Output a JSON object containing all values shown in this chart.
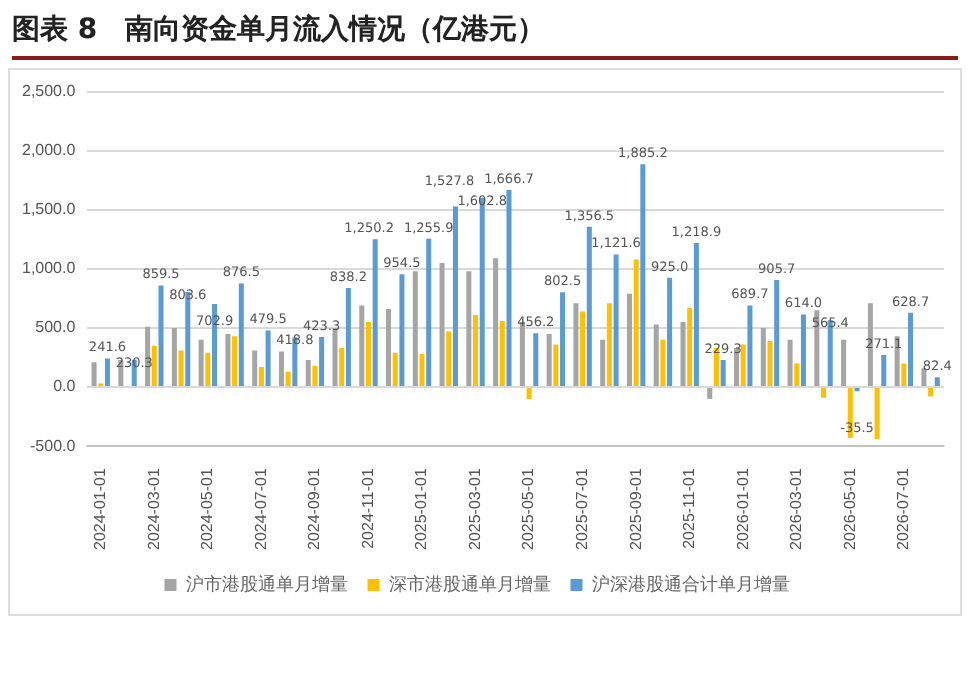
{
  "chart_data": {
    "type": "bar",
    "title": "图表 8　南向资金单月流入情况（亿港元）",
    "categories": [
      "2024-01-01",
      null,
      "2024-03-01",
      null,
      "2024-05-01",
      null,
      "2024-07-01",
      null,
      "2024-09-01",
      null,
      "2024-11-01",
      null,
      "2025-01-01",
      null,
      "2025-03-01",
      null,
      "2025-05-01",
      null,
      "2025-07-01",
      null,
      "2025-09-01",
      null,
      "2025-11-01",
      null,
      "2026-01-01",
      null,
      "2026-03-01",
      null,
      "2026-05-01",
      null,
      "2026-07-01",
      null
    ],
    "series": [
      {
        "name": "沪市港股通单月增量",
        "color": "#a5a5a5",
        "values": [
          210,
          230,
          510,
          500,
          400,
          450,
          310,
          300,
          230,
          500,
          690,
          660,
          980,
          1050,
          980,
          1090,
          550,
          450,
          710,
          400,
          790,
          530,
          550,
          -100,
          330,
          500,
          400,
          650,
          400,
          710,
          430,
          160
        ]
      },
      {
        "name": "深市港股通单月增量",
        "color": "#ffc000",
        "values": [
          30,
          0,
          350,
          310,
          290,
          430,
          170,
          130,
          180,
          330,
          550,
          290,
          280,
          470,
          610,
          560,
          -100,
          360,
          640,
          710,
          1080,
          400,
          670,
          330,
          360,
          390,
          200,
          -90,
          -430,
          -440,
          200,
          -80
        ]
      },
      {
        "name": "沪深港股通合计单月增量",
        "color": "#5b9bd5",
        "values": [
          241.6,
          230.3,
          859.5,
          803.6,
          702.9,
          876.5,
          479.5,
          418.8,
          423.3,
          838.2,
          1250.2,
          954.5,
          1255.9,
          1527.8,
          1602.8,
          1666.7,
          456.2,
          802.5,
          1356.5,
          1121.6,
          1885.2,
          925.0,
          1218.9,
          229.3,
          689.7,
          905.7,
          614.0,
          565.4,
          -35.5,
          271.1,
          628.7,
          82.4
        ],
        "value_labels": [
          "241.6",
          "230.3",
          "859.5",
          "803.6",
          "702.9",
          "876.5",
          "479.5",
          "418.8",
          "423.3",
          "838.2",
          "1,250.2",
          "954.5",
          "1,255.9",
          "1,527.8",
          "1,602.8",
          "1,666.7",
          "456.2",
          "802.5",
          "1,356.5",
          "1,121.6",
          "1,885.2",
          "925.0",
          "1,218.9",
          "229.3",
          "689.7",
          "905.7",
          "614.0",
          "565.4",
          "-35.5",
          "271.1",
          "628.7",
          "82.4"
        ]
      }
    ],
    "ylim": [
      -500,
      2500
    ],
    "yticks": [
      {
        "value": -500,
        "label": "-500.0"
      },
      {
        "value": 0,
        "label": "0.0"
      },
      {
        "value": 500,
        "label": "500.0"
      },
      {
        "value": 1000,
        "label": "1,000.0"
      },
      {
        "value": 1500,
        "label": "1,500.0"
      },
      {
        "value": 2000,
        "label": "2,000.0"
      },
      {
        "value": 2500,
        "label": "2,500.0"
      }
    ],
    "grid": "y",
    "legend": "bottom"
  }
}
